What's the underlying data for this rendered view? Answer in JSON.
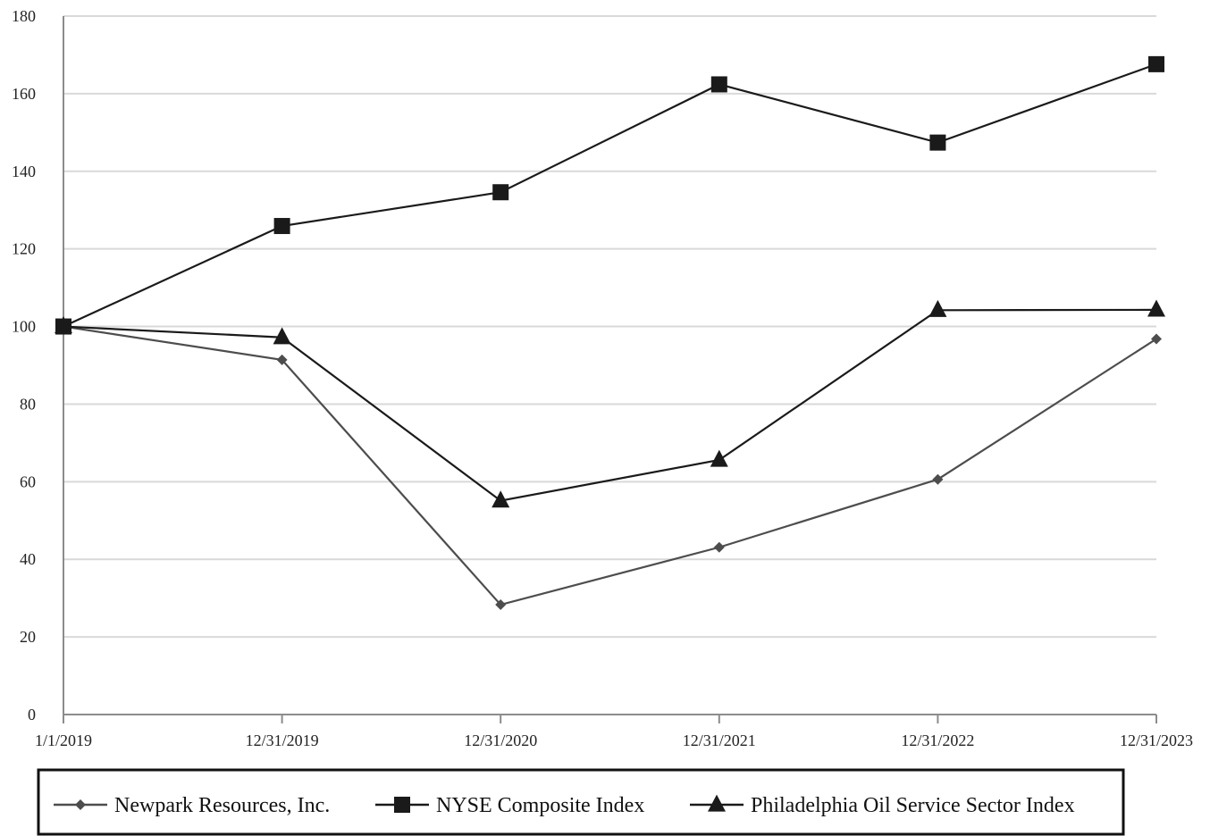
{
  "chart_data": {
    "type": "line",
    "categories": [
      "1/1/2019",
      "12/31/2019",
      "12/31/2020",
      "12/31/2021",
      "12/31/2022",
      "12/31/2023"
    ],
    "ylim": [
      0,
      180
    ],
    "yticks": [
      0,
      20,
      40,
      60,
      80,
      100,
      120,
      140,
      160,
      180
    ],
    "grid": true,
    "legend_position": "bottom",
    "series": [
      {
        "name": "Newpark Resources, Inc.",
        "values": [
          100,
          91.4,
          28.3,
          43.1,
          60.6,
          96.8
        ],
        "color": "#4d4d4d",
        "marker": "diamond"
      },
      {
        "name": "NYSE Composite Index",
        "values": [
          100,
          125.9,
          134.6,
          162.4,
          147.4,
          167.6
        ],
        "color": "#1a1a1a",
        "marker": "square"
      },
      {
        "name": "Philadelphia Oil Service Sector Index",
        "values": [
          100,
          97.2,
          55.1,
          65.6,
          104.2,
          104.3
        ],
        "color": "#1a1a1a",
        "marker": "triangle"
      }
    ]
  }
}
